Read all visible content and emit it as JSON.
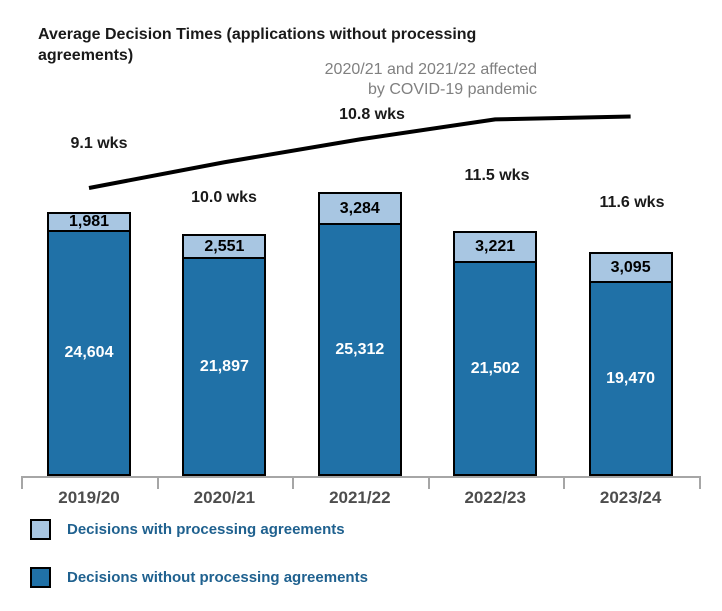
{
  "chart_data": {
    "type": "bar",
    "stacked": true,
    "title": "Average Decision Times (applications without processing agreements)",
    "annotation": {
      "line1": "2020/21 and 2021/22 affected",
      "line2": "by COVID-19 pandemic",
      "color": "#808080"
    },
    "categories": [
      "2019/20",
      "2020/21",
      "2021/22",
      "2022/23",
      "2023/24"
    ],
    "series": [
      {
        "name": "Decisions with processing agreements",
        "color": "#a8c6e2",
        "label_color": "#000000",
        "values": [
          1981,
          2551,
          3284,
          3221,
          3095
        ]
      },
      {
        "name": "Decisions without processing agreements",
        "color": "#2071a7",
        "label_color": "#ffffff",
        "values": [
          24604,
          21897,
          25312,
          21502,
          19470
        ]
      }
    ],
    "line": {
      "unit": "wks",
      "values": [
        9.1,
        10.0,
        10.8,
        11.5,
        11.6
      ],
      "labels": [
        "9.1 wks",
        "10.0 wks",
        "10.8 wks",
        "11.5 wks",
        "11.6 wks"
      ],
      "color": "#000000"
    },
    "grid": false,
    "legend_position": "bottom-left",
    "axis_color": "#a6a6a6",
    "category_label_color": "#4d4d4d",
    "xlabel": "",
    "ylabel": ""
  }
}
